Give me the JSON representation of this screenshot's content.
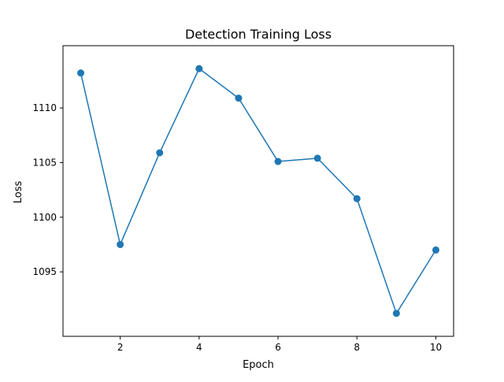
{
  "chart_data": {
    "type": "line",
    "title": "Detection Training Loss",
    "xlabel": "Epoch",
    "ylabel": "Loss",
    "x": [
      1,
      2,
      3,
      4,
      5,
      6,
      7,
      8,
      9,
      10
    ],
    "series": [
      {
        "values": [
          1113.2,
          1097.5,
          1105.9,
          1113.6,
          1110.9,
          1105.1,
          1105.4,
          1101.7,
          1091.2,
          1097.0
        ],
        "color": "#1f77b4",
        "marker": "circle"
      }
    ],
    "xlim": [
      0.55,
      10.45
    ],
    "ylim": [
      1089.1,
      1115.7
    ],
    "xticks": [
      2,
      4,
      6,
      8,
      10
    ],
    "yticks": [
      1095,
      1100,
      1105,
      1110
    ],
    "xtick_labels": [
      "2",
      "4",
      "6",
      "8",
      "10"
    ],
    "ytick_labels": [
      "1095",
      "1100",
      "1105",
      "1110"
    ],
    "grid": false,
    "legend": false
  }
}
